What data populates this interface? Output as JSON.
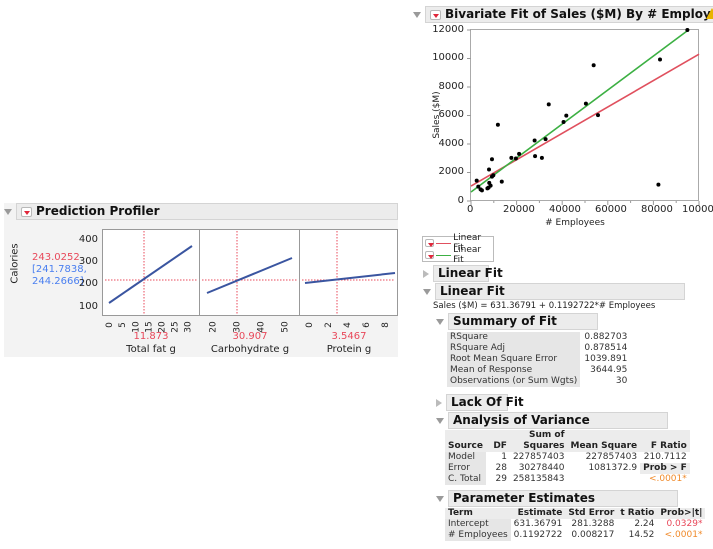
{
  "profiler": {
    "title": "Prediction Profiler",
    "response_label": "Calories",
    "predicted_value": "243.0252",
    "ci_low": "[241.7838,",
    "ci_high": "244.2666]",
    "y_ticks": [
      "400",
      "300",
      "200",
      "100"
    ],
    "panels": [
      {
        "factor": "Total fat g",
        "current": "11.873",
        "ticks": [
          "0",
          "5",
          "10",
          "15",
          "20",
          "25",
          "30"
        ]
      },
      {
        "factor": "Carbohydrate g",
        "current": "30.907",
        "ticks": [
          "20",
          "30",
          "40",
          "50"
        ]
      },
      {
        "factor": "Protein g",
        "current": "3.5467",
        "ticks": [
          "0",
          "2",
          "4",
          "6",
          "8"
        ]
      }
    ],
    "colors": {
      "line": "#3a55a0",
      "crosshair": "#e8485a",
      "ci_text": "#4a7ff0",
      "pred_text": "#e8485a"
    }
  },
  "bivariate": {
    "title": "Bivariate Fit of Sales ($M) By # Employees",
    "warning_icon": "warning-icon",
    "window_icon": "restore-icon"
  },
  "chart_data": {
    "type": "scatter",
    "title": "Bivariate Fit of Sales ($M) By # Employees",
    "xlabel": "# Employees",
    "ylabel": "Sales ($M)",
    "xlim": [
      0,
      100000
    ],
    "ylim": [
      0,
      12000
    ],
    "x_ticks": [
      "0",
      "20000",
      "40000",
      "60000",
      "80000",
      "100000"
    ],
    "y_ticks": [
      "0",
      "2000",
      "4000",
      "6000",
      "8000",
      "10000",
      "12000"
    ],
    "points": [
      [
        94900,
        12000
      ],
      [
        82900,
        9930
      ],
      [
        53800,
        9530
      ],
      [
        82200,
        1150
      ],
      [
        55700,
        6030
      ],
      [
        50400,
        6830
      ],
      [
        34100,
        6780
      ],
      [
        41800,
        5990
      ],
      [
        40600,
        5540
      ],
      [
        32700,
        4340
      ],
      [
        27900,
        4250
      ],
      [
        28100,
        3150
      ],
      [
        31100,
        3030
      ],
      [
        21100,
        3310
      ],
      [
        19700,
        2980
      ],
      [
        17700,
        3030
      ],
      [
        11800,
        5350
      ],
      [
        9200,
        2930
      ],
      [
        7900,
        2210
      ],
      [
        9800,
        1810
      ],
      [
        9200,
        1710
      ],
      [
        13500,
        1360
      ],
      [
        2500,
        1430
      ],
      [
        3200,
        1010
      ],
      [
        4200,
        820
      ],
      [
        4800,
        750
      ],
      [
        8000,
        1270
      ],
      [
        8600,
        1080
      ],
      [
        7700,
        940
      ],
      [
        7200,
        890
      ]
    ],
    "series": [
      {
        "name": "Linear Fit",
        "color": "#e0505e",
        "x": [
          0,
          100000
        ],
        "y": [
          1050,
          10300
        ]
      },
      {
        "name": "Linear Fit",
        "color": "#3cb043",
        "x": [
          0,
          94900
        ],
        "y": [
          631.37,
          11950
        ]
      }
    ]
  },
  "legend": {
    "items": [
      {
        "label": "Linear Fit",
        "color": "#e0505e"
      },
      {
        "label": "Linear Fit",
        "color": "#3cb043"
      }
    ]
  },
  "sections": {
    "linear_fit_1": "Linear Fit",
    "linear_fit_2": "Linear Fit",
    "equation": "Sales ($M) = 631.36791 + 0.1192722*# Employees",
    "summary_title": "Summary of Fit",
    "lack_of_fit": "Lack Of Fit",
    "anova_title": "Analysis of Variance",
    "params_title": "Parameter Estimates"
  },
  "summary": {
    "rows": [
      {
        "label": "RSquare",
        "value": "0.882703"
      },
      {
        "label": "RSquare Adj",
        "value": "0.878514"
      },
      {
        "label": "Root Mean Square Error",
        "value": "1039.891"
      },
      {
        "label": "Mean of Response",
        "value": "3644.95"
      },
      {
        "label": "Observations (or Sum Wgts)",
        "value": "30"
      }
    ]
  },
  "anova": {
    "headers": {
      "source": "Source",
      "df": "DF",
      "ss_top": "Sum of",
      "ss": "Squares",
      "ms": "Mean Square",
      "f": "F Ratio"
    },
    "rows": [
      {
        "source": "Model",
        "df": "1",
        "ss": "227857403",
        "ms": "227857403",
        "f": "210.7112"
      },
      {
        "source": "Error",
        "df": "28",
        "ss": "30278440",
        "ms": "1081372.9",
        "f": "Prob > F"
      },
      {
        "source": "C. Total",
        "df": "29",
        "ss": "258135843",
        "ms": "",
        "f": "<.0001*"
      }
    ]
  },
  "params": {
    "headers": {
      "term": "Term",
      "est": "Estimate",
      "se": "Std Error",
      "t": "t Ratio",
      "p": "Prob>|t|"
    },
    "rows": [
      {
        "term": "Intercept",
        "est": "631.36791",
        "se": "281.3288",
        "t": "2.24",
        "p": "0.0329*"
      },
      {
        "term": "# Employees",
        "est": "0.1192722",
        "se": "0.008217",
        "t": "14.52",
        "p": "<.0001*"
      }
    ]
  }
}
